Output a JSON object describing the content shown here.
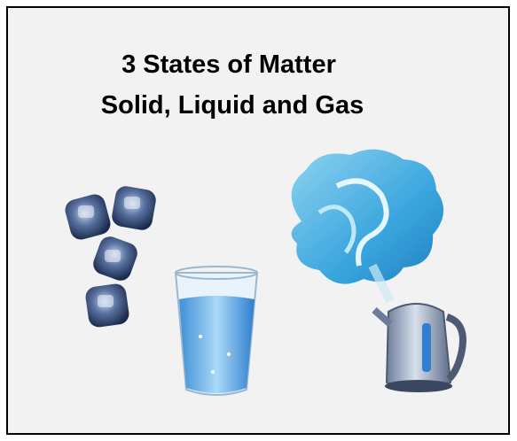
{
  "title": {
    "line1": "3 States of Matter",
    "line2": "Solid, Liquid and Gas"
  }
}
